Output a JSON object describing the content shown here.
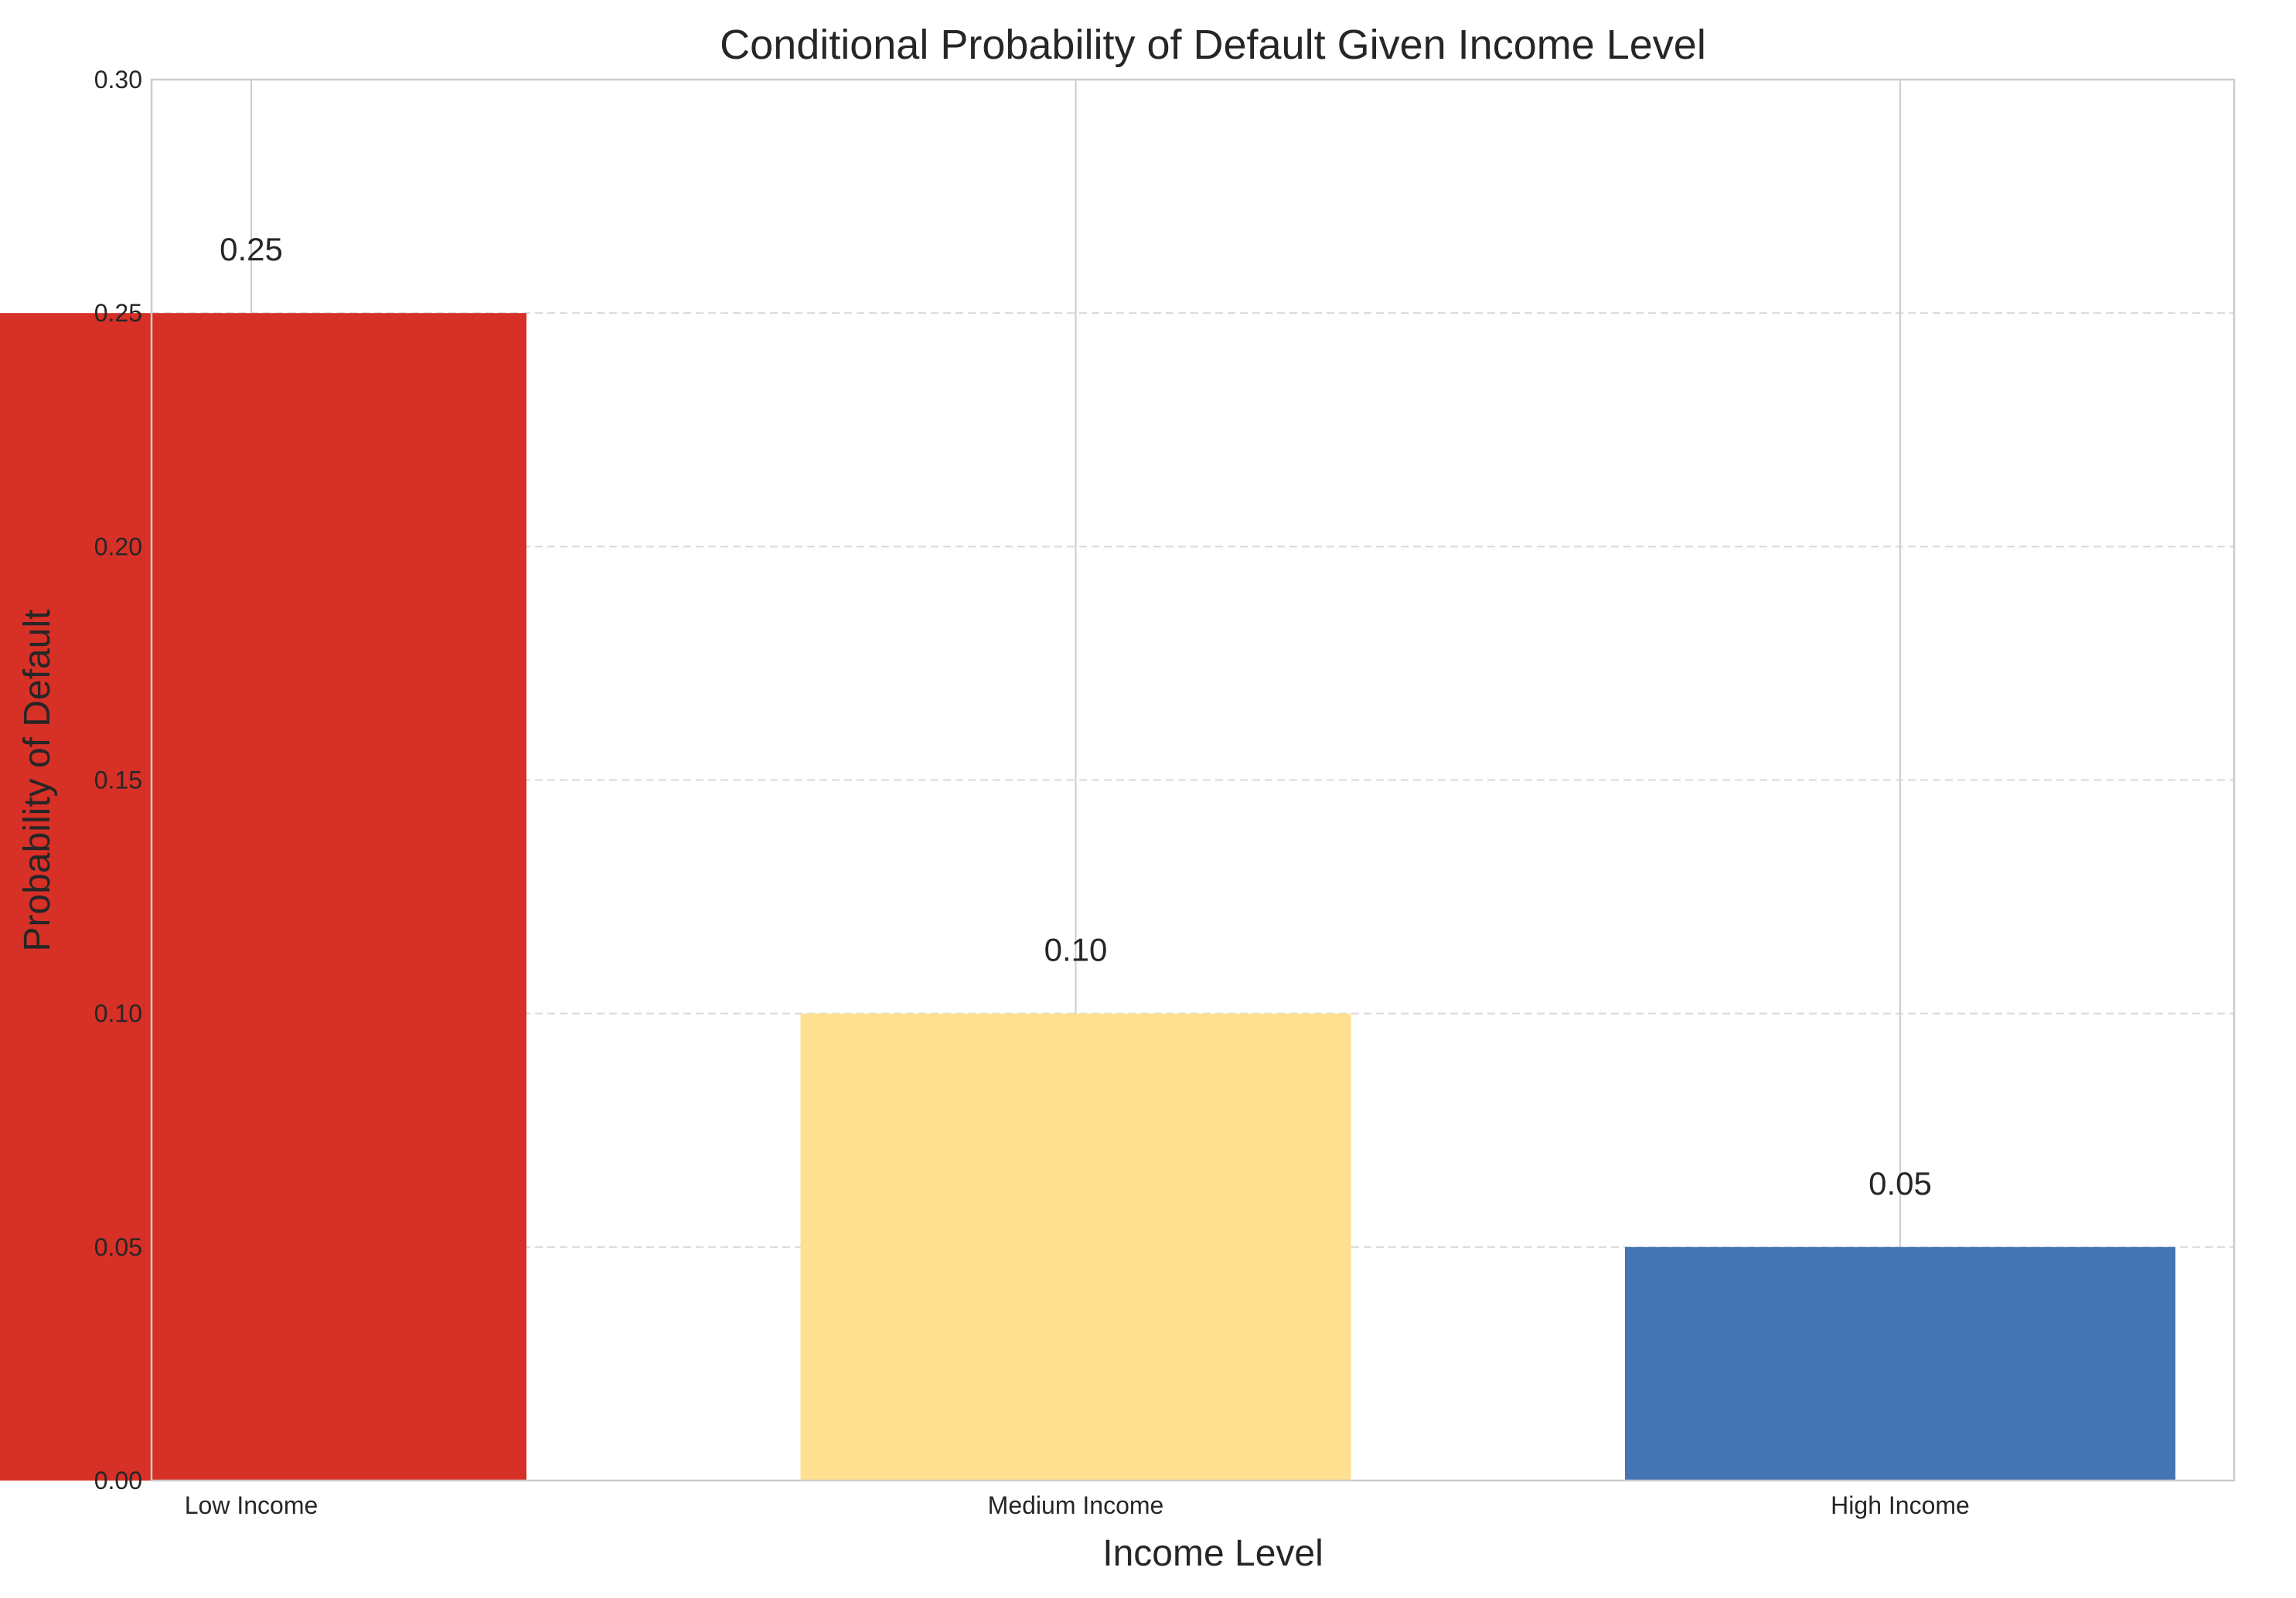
{
  "chart_data": {
    "type": "bar",
    "title": "Conditional Probability of Default Given Income Level",
    "xlabel": "Income Level",
    "ylabel": "Probability of Default",
    "categories": [
      "Low Income",
      "Medium Income",
      "High Income"
    ],
    "values": [
      0.25,
      0.1,
      0.05
    ],
    "value_labels": [
      "0.25",
      "0.10",
      "0.05"
    ],
    "colors": [
      "#d73027",
      "#fee090",
      "#4575b4"
    ],
    "ylim": [
      0,
      0.3
    ],
    "yticks": [
      0.0,
      0.05,
      0.1,
      0.15,
      0.2,
      0.25,
      0.3
    ],
    "ytick_labels": [
      "0.00",
      "0.05",
      "0.10",
      "0.15",
      "0.20",
      "0.25",
      "0.30"
    ],
    "grid": true,
    "legend": false
  }
}
